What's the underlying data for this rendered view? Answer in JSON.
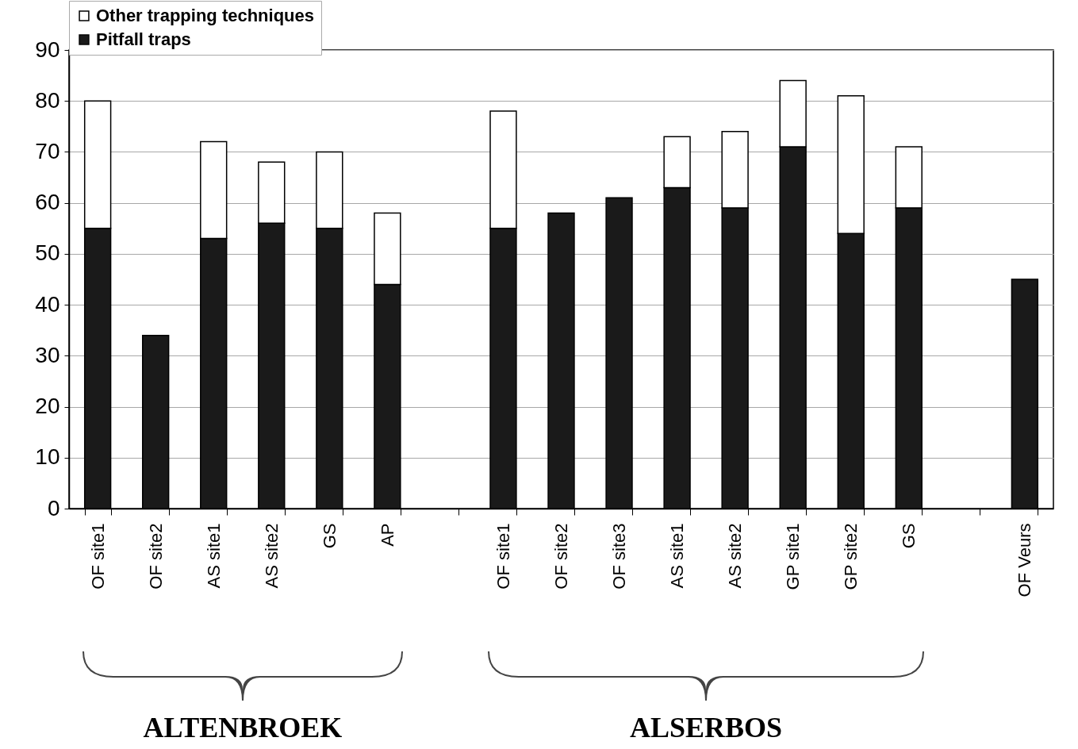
{
  "chart_data": {
    "type": "bar",
    "stacked": true,
    "categories": [
      "OF site1",
      "OF site2",
      "AS site1",
      "AS site2",
      "GS",
      "AP",
      null,
      "OF site1",
      "OF site2",
      "OF site3",
      "AS site1",
      "AS site2",
      "GP site1",
      "GP site2",
      "GS",
      null,
      "OF Veurs"
    ],
    "series": [
      {
        "name": "Pitfall traps",
        "color": "#1a1a1a",
        "values": [
          55,
          34,
          53,
          56,
          55,
          44,
          null,
          55,
          58,
          61,
          63,
          59,
          71,
          54,
          59,
          null,
          45
        ]
      },
      {
        "name": "Other trapping techniques",
        "color": "#ffffff",
        "values": [
          25,
          null,
          19,
          12,
          15,
          14,
          null,
          23,
          null,
          null,
          10,
          15,
          13,
          27,
          12,
          null,
          null
        ]
      }
    ],
    "ylim": [
      0,
      90
    ],
    "yticks": [
      0,
      10,
      20,
      30,
      40,
      50,
      60,
      70,
      80,
      90
    ],
    "grid": "y",
    "legend": "top left",
    "annotations": [
      "ALTENBROEK",
      "ALSERBOS"
    ]
  }
}
